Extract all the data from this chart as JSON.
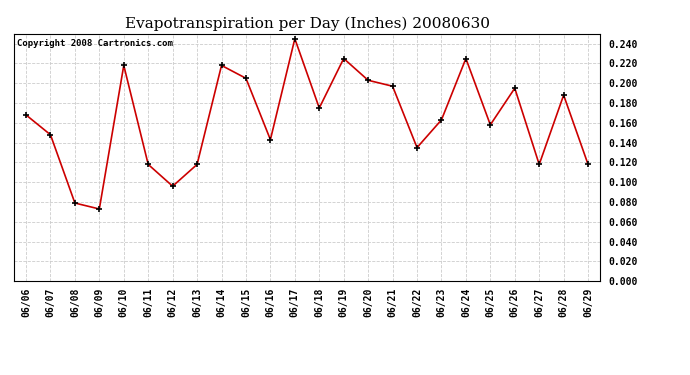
{
  "title": "Evapotranspiration per Day (Inches) 20080630",
  "copyright": "Copyright 2008 Cartronics.com",
  "dates": [
    "06/06",
    "06/07",
    "06/08",
    "06/09",
    "06/10",
    "06/11",
    "06/12",
    "06/13",
    "06/14",
    "06/15",
    "06/16",
    "06/17",
    "06/18",
    "06/19",
    "06/20",
    "06/21",
    "06/22",
    "06/23",
    "06/24",
    "06/25",
    "06/26",
    "06/27",
    "06/28",
    "06/29"
  ],
  "values": [
    0.168,
    0.148,
    0.079,
    0.073,
    0.218,
    0.118,
    0.096,
    0.118,
    0.218,
    0.205,
    0.143,
    0.245,
    0.175,
    0.225,
    0.203,
    0.197,
    0.135,
    0.163,
    0.225,
    0.158,
    0.195,
    0.118,
    0.188,
    0.118
  ],
  "line_color": "#cc0000",
  "marker_color": "#000000",
  "bg_color": "#ffffff",
  "plot_bg_color": "#ffffff",
  "grid_color": "#cccccc",
  "ylim": [
    0.0,
    0.25
  ],
  "ytick_step": 0.02,
  "title_fontsize": 11,
  "copyright_fontsize": 6.5,
  "tick_fontsize": 7,
  "ylabel_fontsize": 7
}
